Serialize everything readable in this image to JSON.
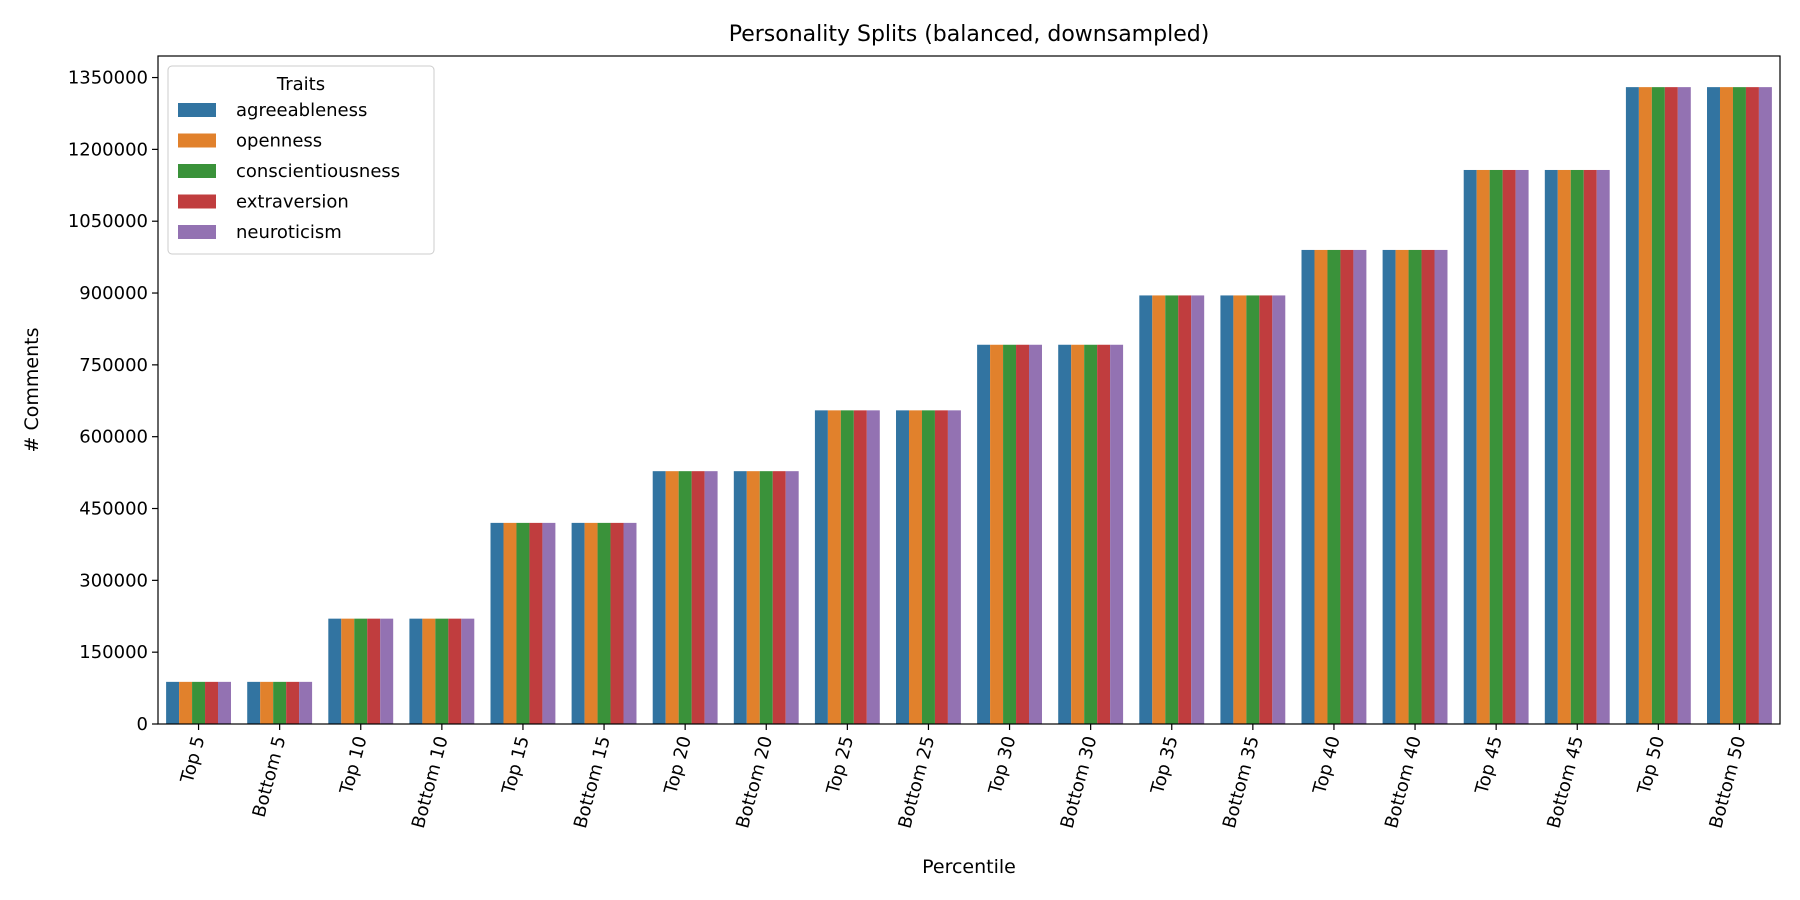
{
  "chart_data": {
    "type": "bar",
    "title": "Personality Splits (balanced, downsampled)",
    "xlabel": "Percentile",
    "ylabel": "# Comments",
    "ylim": [
      0,
      1395000
    ],
    "yticks": [
      0,
      150000,
      300000,
      450000,
      600000,
      750000,
      900000,
      1050000,
      1200000,
      1350000
    ],
    "categories": [
      "Top 5",
      "Bottom 5",
      "Top 10",
      "Bottom 10",
      "Top 15",
      "Bottom 15",
      "Top 20",
      "Bottom 20",
      "Top 25",
      "Bottom 25",
      "Top 30",
      "Bottom 30",
      "Top 35",
      "Bottom 35",
      "Top 40",
      "Bottom 40",
      "Top 45",
      "Bottom 45",
      "Top 50",
      "Bottom 50"
    ],
    "x_tick_rotation_deg": 75,
    "legend": {
      "title": "Traits",
      "placement": "top-left"
    },
    "grid": false,
    "series": [
      {
        "name": "agreeableness",
        "color": "#3274a1",
        "values": [
          88000,
          88000,
          220000,
          220000,
          420000,
          420000,
          528000,
          528000,
          655000,
          655000,
          792000,
          792000,
          895000,
          895000,
          990000,
          990000,
          1157000,
          1157000,
          1330000,
          1330000
        ]
      },
      {
        "name": "openness",
        "color": "#e1812c",
        "values": [
          88000,
          88000,
          220000,
          220000,
          420000,
          420000,
          528000,
          528000,
          655000,
          655000,
          792000,
          792000,
          895000,
          895000,
          990000,
          990000,
          1157000,
          1157000,
          1330000,
          1330000
        ]
      },
      {
        "name": "conscientiousness",
        "color": "#3a923a",
        "values": [
          88000,
          88000,
          220000,
          220000,
          420000,
          420000,
          528000,
          528000,
          655000,
          655000,
          792000,
          792000,
          895000,
          895000,
          990000,
          990000,
          1157000,
          1157000,
          1330000,
          1330000
        ]
      },
      {
        "name": "extraversion",
        "color": "#c03d3e",
        "values": [
          88000,
          88000,
          220000,
          220000,
          420000,
          420000,
          528000,
          528000,
          655000,
          655000,
          792000,
          792000,
          895000,
          895000,
          990000,
          990000,
          1157000,
          1157000,
          1330000,
          1330000
        ]
      },
      {
        "name": "neuroticism",
        "color": "#9372b2",
        "values": [
          88000,
          88000,
          220000,
          220000,
          420000,
          420000,
          528000,
          528000,
          655000,
          655000,
          792000,
          792000,
          895000,
          895000,
          990000,
          990000,
          1157000,
          1157000,
          1330000,
          1330000
        ]
      }
    ]
  }
}
